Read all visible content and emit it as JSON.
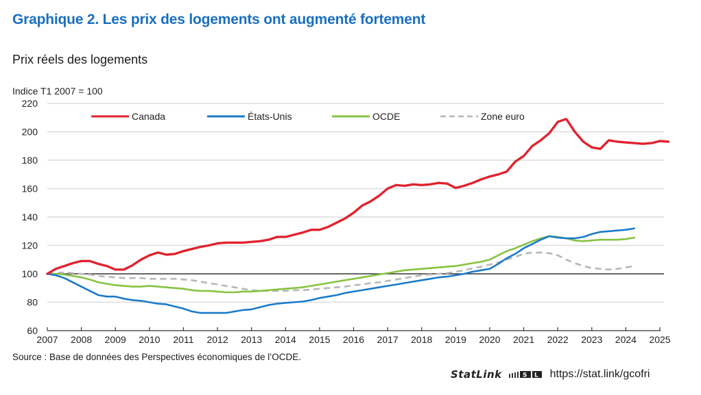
{
  "header": {
    "title": "Graphique 2. Les prix des logements ont augmenté fortement",
    "subtitle": "Prix réels des logements"
  },
  "footer": {
    "source": "Source : Base de données des Perspectives économiques de l’OCDE.",
    "statlink_label": "StatLink",
    "statlink_logo": "statlink-logo-icon",
    "statlink_url": "https://stat.link/gcofri"
  },
  "chart_data": {
    "type": "line",
    "title": "Prix réels des logements",
    "ylabel": "Indice T1 2007 = 100",
    "xlabel": "",
    "ylim": [
      60,
      220
    ],
    "yticks": [
      60,
      80,
      100,
      120,
      140,
      160,
      180,
      200,
      220
    ],
    "xlim": [
      2007,
      2025
    ],
    "xticks": [
      2007,
      2008,
      2009,
      2010,
      2011,
      2012,
      2013,
      2014,
      2015,
      2016,
      2017,
      2018,
      2019,
      2020,
      2021,
      2022,
      2023,
      2024,
      2025
    ],
    "grid": "horizontal",
    "reference_line": 100,
    "legend_position": "top",
    "x_frequency": "quarterly",
    "x_start": 2007,
    "series": [
      {
        "name": "Canada",
        "color": "#e0232e",
        "style": "solid",
        "values": [
          100,
          103.5,
          105.5,
          107.5,
          109,
          109,
          107,
          105.5,
          103,
          103,
          106,
          110,
          113,
          115,
          113.5,
          114,
          116,
          117.5,
          119,
          120,
          121.5,
          122,
          122,
          122,
          122.5,
          123,
          124,
          126,
          126,
          127.5,
          129,
          131,
          131,
          133,
          136,
          139,
          143,
          148,
          151,
          155,
          160,
          162.5,
          162,
          163,
          162.5,
          163,
          164,
          163.5,
          160.5,
          162,
          164,
          166.5,
          168.5,
          170,
          172,
          179,
          183,
          190,
          194,
          199,
          207,
          209,
          200,
          193,
          189,
          188,
          194,
          193,
          192.5,
          192,
          191.5,
          192,
          193.5,
          193
        ]
      },
      {
        "name": "États-Unis",
        "color": "#1a7ac9",
        "style": "solid",
        "values": [
          100,
          99,
          97,
          94,
          91,
          88,
          85,
          84,
          84,
          82.5,
          81.5,
          81,
          80,
          79,
          78.5,
          77,
          75.5,
          73.5,
          72.5,
          72.5,
          72.5,
          72.5,
          73.5,
          74.5,
          75,
          76.5,
          78,
          79,
          79.5,
          80,
          80.5,
          81.5,
          83,
          84,
          85,
          86.5,
          87.5,
          88.5,
          89.5,
          90.5,
          91.5,
          92.5,
          93.5,
          94.5,
          95.5,
          96.5,
          97.5,
          98,
          99,
          100,
          101.5,
          102.5,
          103.5,
          107,
          111,
          114,
          118,
          121,
          124,
          126.5,
          125.5,
          125,
          125,
          126,
          128,
          129.5,
          130,
          130.5,
          131,
          132
        ]
      },
      {
        "name": "OCDE",
        "color": "#86c340",
        "style": "solid",
        "values": [
          100,
          100,
          99.5,
          98.5,
          97.5,
          96,
          94,
          93,
          92,
          91.5,
          91,
          91,
          91.5,
          91,
          90.5,
          90,
          89.5,
          88.5,
          88,
          88,
          87.5,
          87,
          87,
          87.5,
          87.5,
          88,
          88.5,
          89,
          89.5,
          90,
          90.5,
          91.5,
          92.5,
          93.5,
          94.5,
          95.5,
          96.5,
          97.5,
          98.5,
          99.5,
          100.5,
          101.5,
          102.5,
          103,
          103.5,
          104,
          104.5,
          105,
          105.5,
          106.5,
          107.5,
          108.5,
          110,
          113,
          116,
          118,
          120.5,
          123,
          125,
          126.5,
          126,
          125,
          123.5,
          123,
          123.5,
          124,
          124,
          124,
          124.5,
          125.5
        ]
      },
      {
        "name": "Zone euro",
        "color": "#b7b7b7",
        "style": "dashed",
        "values": [
          100,
          100.5,
          101,
          100.5,
          100,
          99.5,
          98.5,
          98,
          97.5,
          97,
          97,
          97,
          96.5,
          96.5,
          96.5,
          96.5,
          96,
          95.5,
          94.5,
          93.5,
          92.5,
          91.5,
          90.5,
          89.5,
          88.5,
          88,
          88,
          88,
          88,
          88.5,
          88.5,
          89,
          89.5,
          90,
          90.5,
          91,
          92,
          92.5,
          93.5,
          94,
          95,
          96,
          97,
          98,
          99,
          99.5,
          100,
          100.5,
          101.5,
          102.5,
          104,
          105,
          106.5,
          108,
          110,
          112,
          114,
          115,
          115,
          114.5,
          113,
          110,
          107.5,
          105.5,
          104,
          103.5,
          103,
          103.5,
          104.5,
          105.5
        ]
      }
    ]
  }
}
